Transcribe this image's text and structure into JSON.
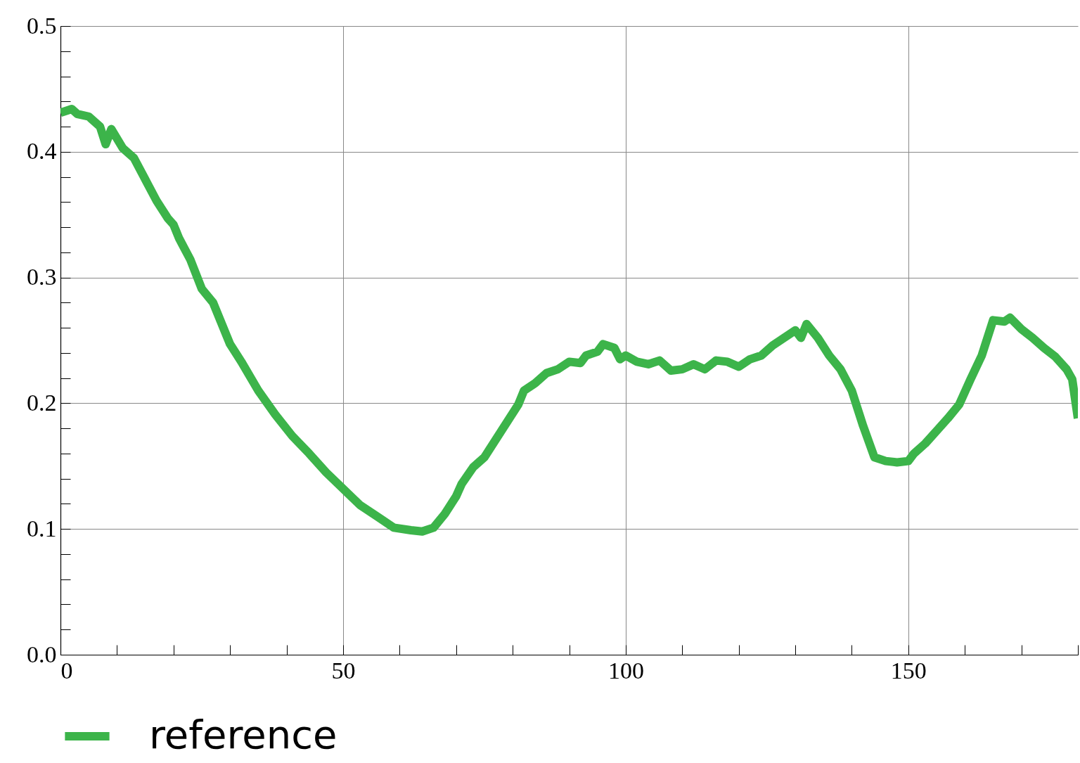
{
  "chart_data": {
    "type": "line",
    "legend": "bottom left",
    "grid": true,
    "line_style": "solid",
    "xlim": [
      0,
      180
    ],
    "ylim": [
      0,
      0.5
    ],
    "xticks": [
      0,
      {
        "value": 10,
        "label": null
      },
      {
        "value": 20,
        "label": null
      },
      {
        "value": 30,
        "label": null
      },
      {
        "value": 40,
        "label": null
      },
      50,
      {
        "value": 60,
        "label": null
      },
      {
        "value": 70,
        "label": null
      },
      {
        "value": 80,
        "label": null
      },
      {
        "value": 90,
        "label": null
      },
      100,
      {
        "value": 110,
        "label": null
      },
      {
        "value": 120,
        "label": null
      },
      {
        "value": 130,
        "label": null
      },
      {
        "value": 140,
        "label": null
      },
      150,
      {
        "value": 160,
        "label": null
      },
      {
        "value": 170,
        "label": null
      },
      {
        "value": 180,
        "label": null
      }
    ],
    "yticks": [
      {
        "value": 0,
        "label": "0.0"
      },
      {
        "value": 0.02,
        "label": null
      },
      {
        "value": 0.04,
        "label": null
      },
      {
        "value": 0.06,
        "label": null
      },
      {
        "value": 0.08,
        "label": null
      },
      0.1,
      {
        "value": 0.12,
        "label": null
      },
      {
        "value": 0.14,
        "label": null
      },
      {
        "value": 0.16,
        "label": null
      },
      {
        "value": 0.18,
        "label": null
      },
      0.2,
      {
        "value": 0.22,
        "label": null
      },
      {
        "value": 0.24,
        "label": null
      },
      {
        "value": 0.26,
        "label": null
      },
      {
        "value": 0.28,
        "label": null
      },
      0.3,
      {
        "value": 0.32,
        "label": null
      },
      {
        "value": 0.34,
        "label": null
      },
      {
        "value": 0.36,
        "label": null
      },
      {
        "value": 0.38,
        "label": null
      },
      0.4,
      {
        "value": 0.42,
        "label": null
      },
      {
        "value": 0.44,
        "label": null
      },
      {
        "value": 0.46,
        "label": null
      },
      {
        "value": 0.48,
        "label": null
      },
      0.5
    ],
    "series": [
      {
        "name": "reference",
        "color": "#3cb44a",
        "x": [
          0,
          2,
          3,
          5,
          7,
          8,
          9,
          11,
          13,
          15,
          17,
          19,
          20,
          21,
          23,
          25,
          27,
          30,
          32,
          35,
          38,
          41,
          44,
          47,
          50,
          53,
          56,
          59,
          62,
          64,
          66,
          68,
          70,
          71,
          73,
          75,
          77,
          79,
          81,
          82,
          84,
          86,
          88,
          90,
          92,
          93,
          95,
          96,
          98,
          99,
          100,
          102,
          104,
          106,
          108,
          110,
          112,
          114,
          116,
          118,
          120,
          122,
          124,
          126,
          128,
          130,
          131,
          132,
          134,
          136,
          138,
          140,
          141,
          142,
          144,
          146,
          148,
          150,
          151,
          153,
          155,
          157,
          159,
          161,
          163,
          165,
          167,
          168,
          170,
          172,
          174,
          176,
          178,
          179,
          180
        ],
        "values": [
          0.431,
          0.434,
          0.43,
          0.428,
          0.42,
          0.406,
          0.418,
          0.403,
          0.395,
          0.378,
          0.361,
          0.347,
          0.342,
          0.331,
          0.314,
          0.291,
          0.28,
          0.247,
          0.233,
          0.21,
          0.191,
          0.174,
          0.16,
          0.145,
          0.132,
          0.119,
          0.11,
          0.101,
          0.099,
          0.098,
          0.101,
          0.112,
          0.126,
          0.136,
          0.149,
          0.157,
          0.171,
          0.185,
          0.199,
          0.21,
          0.216,
          0.224,
          0.227,
          0.233,
          0.232,
          0.238,
          0.241,
          0.247,
          0.244,
          0.235,
          0.238,
          0.233,
          0.231,
          0.234,
          0.226,
          0.227,
          0.231,
          0.227,
          0.234,
          0.233,
          0.229,
          0.235,
          0.238,
          0.246,
          0.252,
          0.258,
          0.252,
          0.263,
          0.252,
          0.238,
          0.227,
          0.21,
          0.196,
          0.182,
          0.157,
          0.154,
          0.153,
          0.154,
          0.16,
          0.168,
          0.178,
          0.188,
          0.199,
          0.219,
          0.238,
          0.266,
          0.265,
          0.268,
          0.259,
          0.252,
          0.244,
          0.237,
          0.227,
          0.219,
          0.188
        ]
      }
    ]
  }
}
